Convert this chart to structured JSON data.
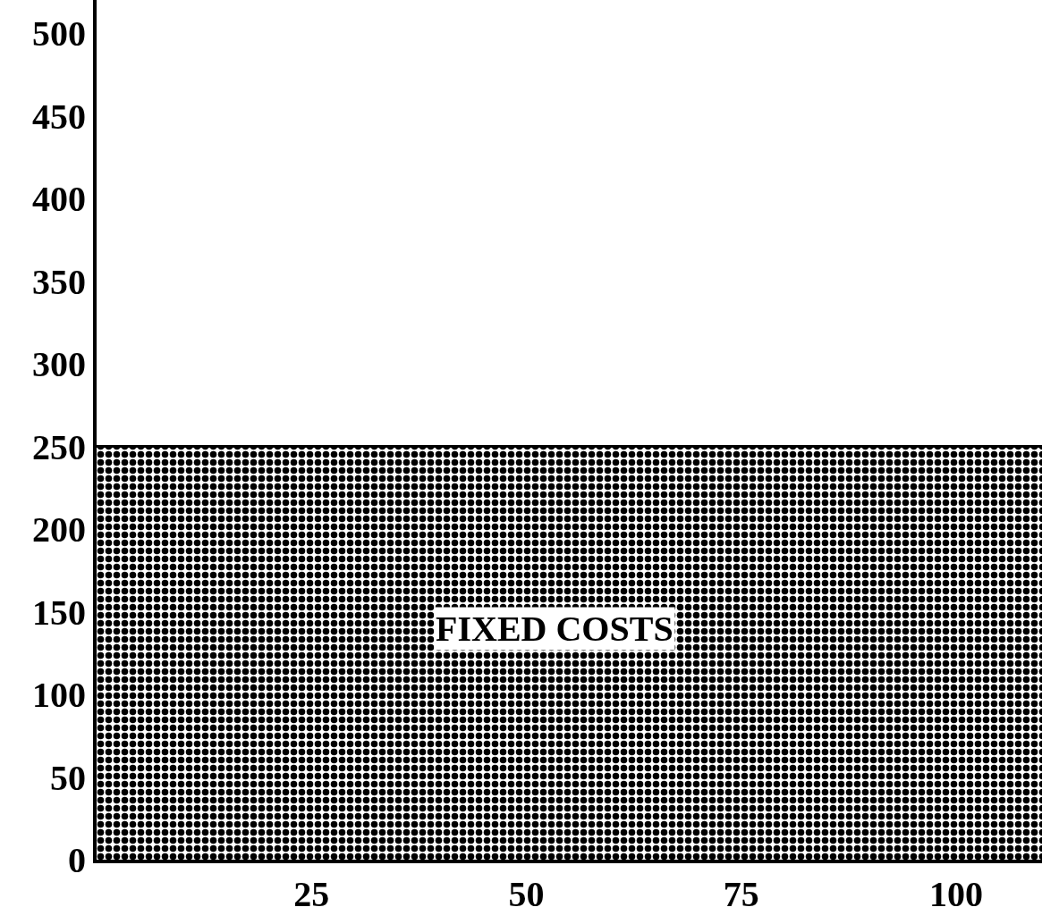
{
  "chart_data": {
    "type": "area",
    "x": [
      0,
      110
    ],
    "series": [
      {
        "color": "#000000",
        "values": [
          250,
          250
        ]
      }
    ],
    "xlim": [
      0,
      110
    ],
    "xticks": [
      25,
      50,
      75,
      100
    ],
    "ylim": [
      0,
      520
    ],
    "yticks": [
      0,
      50,
      100,
      150,
      200,
      250,
      300,
      350,
      400,
      450,
      500
    ],
    "annotations": [
      "FIXED COSTS"
    ]
  }
}
